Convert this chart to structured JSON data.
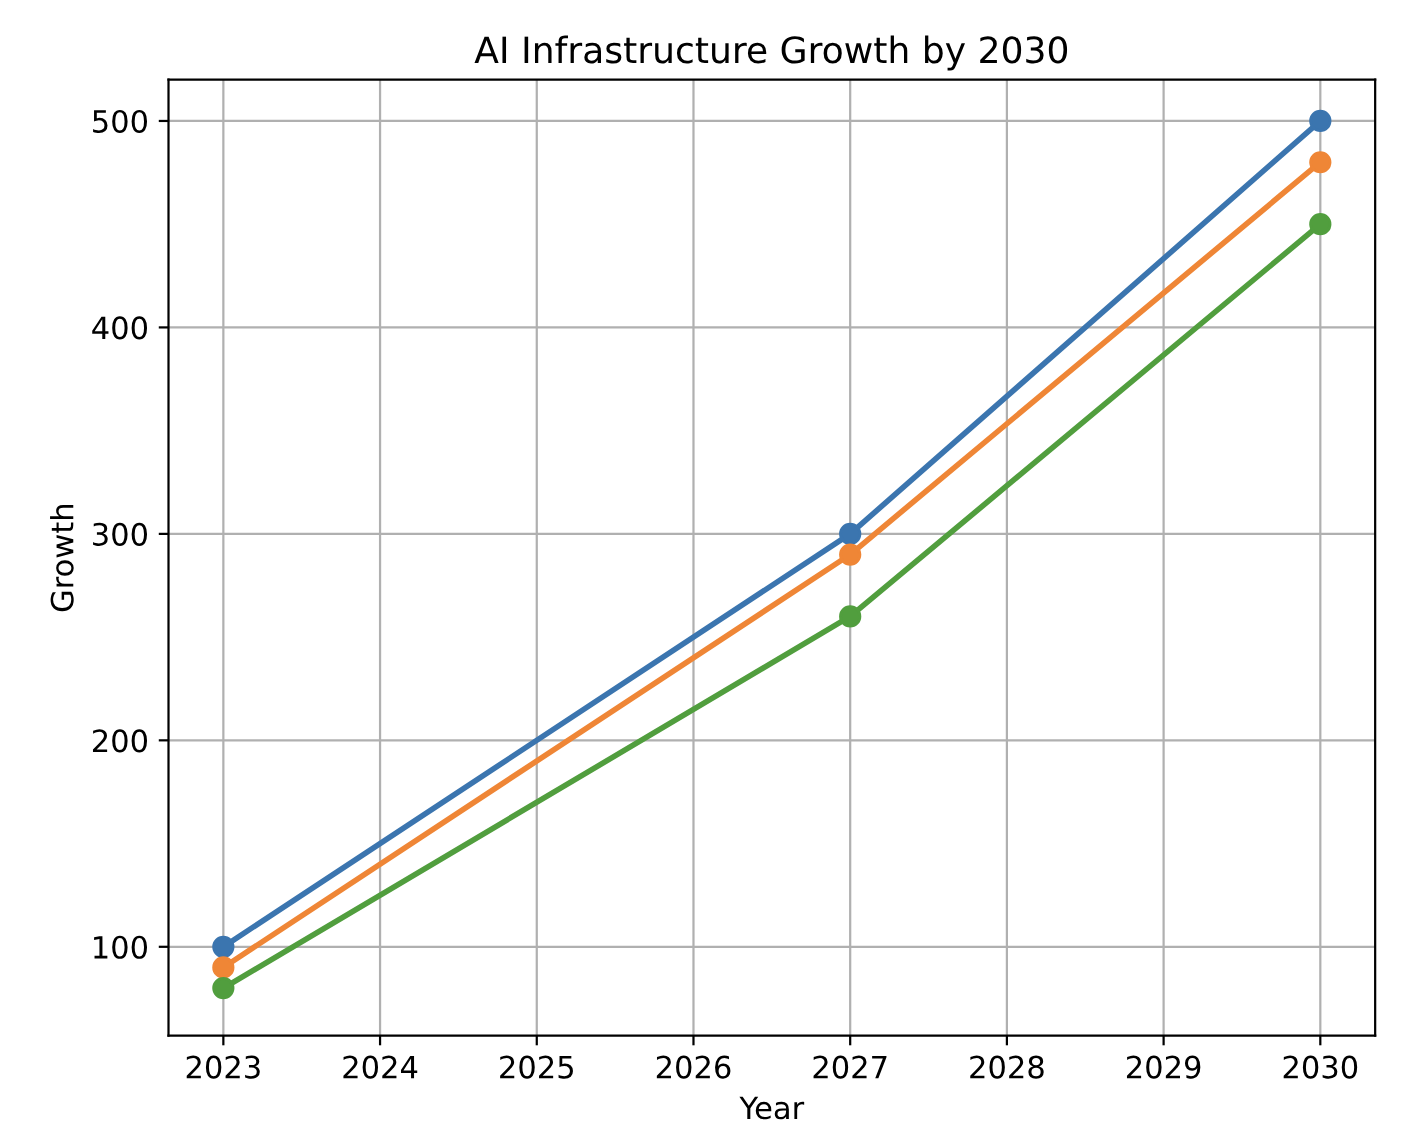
{
  "chart_data": {
    "type": "line",
    "title": "AI Infrastructure Growth by 2030",
    "xlabel": "Year",
    "ylabel": "Growth",
    "x": [
      2023,
      2027,
      2030
    ],
    "series": [
      {
        "color": "#3b75af",
        "values": [
          100,
          300,
          500
        ]
      },
      {
        "color": "#ef8636",
        "values": [
          90,
          290,
          480
        ]
      },
      {
        "color": "#519e3e",
        "values": [
          80,
          260,
          450
        ]
      }
    ],
    "xlim": [
      2022.65,
      2030.35
    ],
    "xticks": [
      2023,
      2024,
      2025,
      2026,
      2027,
      2028,
      2029,
      2030
    ],
    "ylim": [
      57,
      520
    ],
    "yticks": [
      100,
      200,
      300,
      400,
      500
    ],
    "grid": true,
    "marker": "circle",
    "line_style": "solid"
  }
}
